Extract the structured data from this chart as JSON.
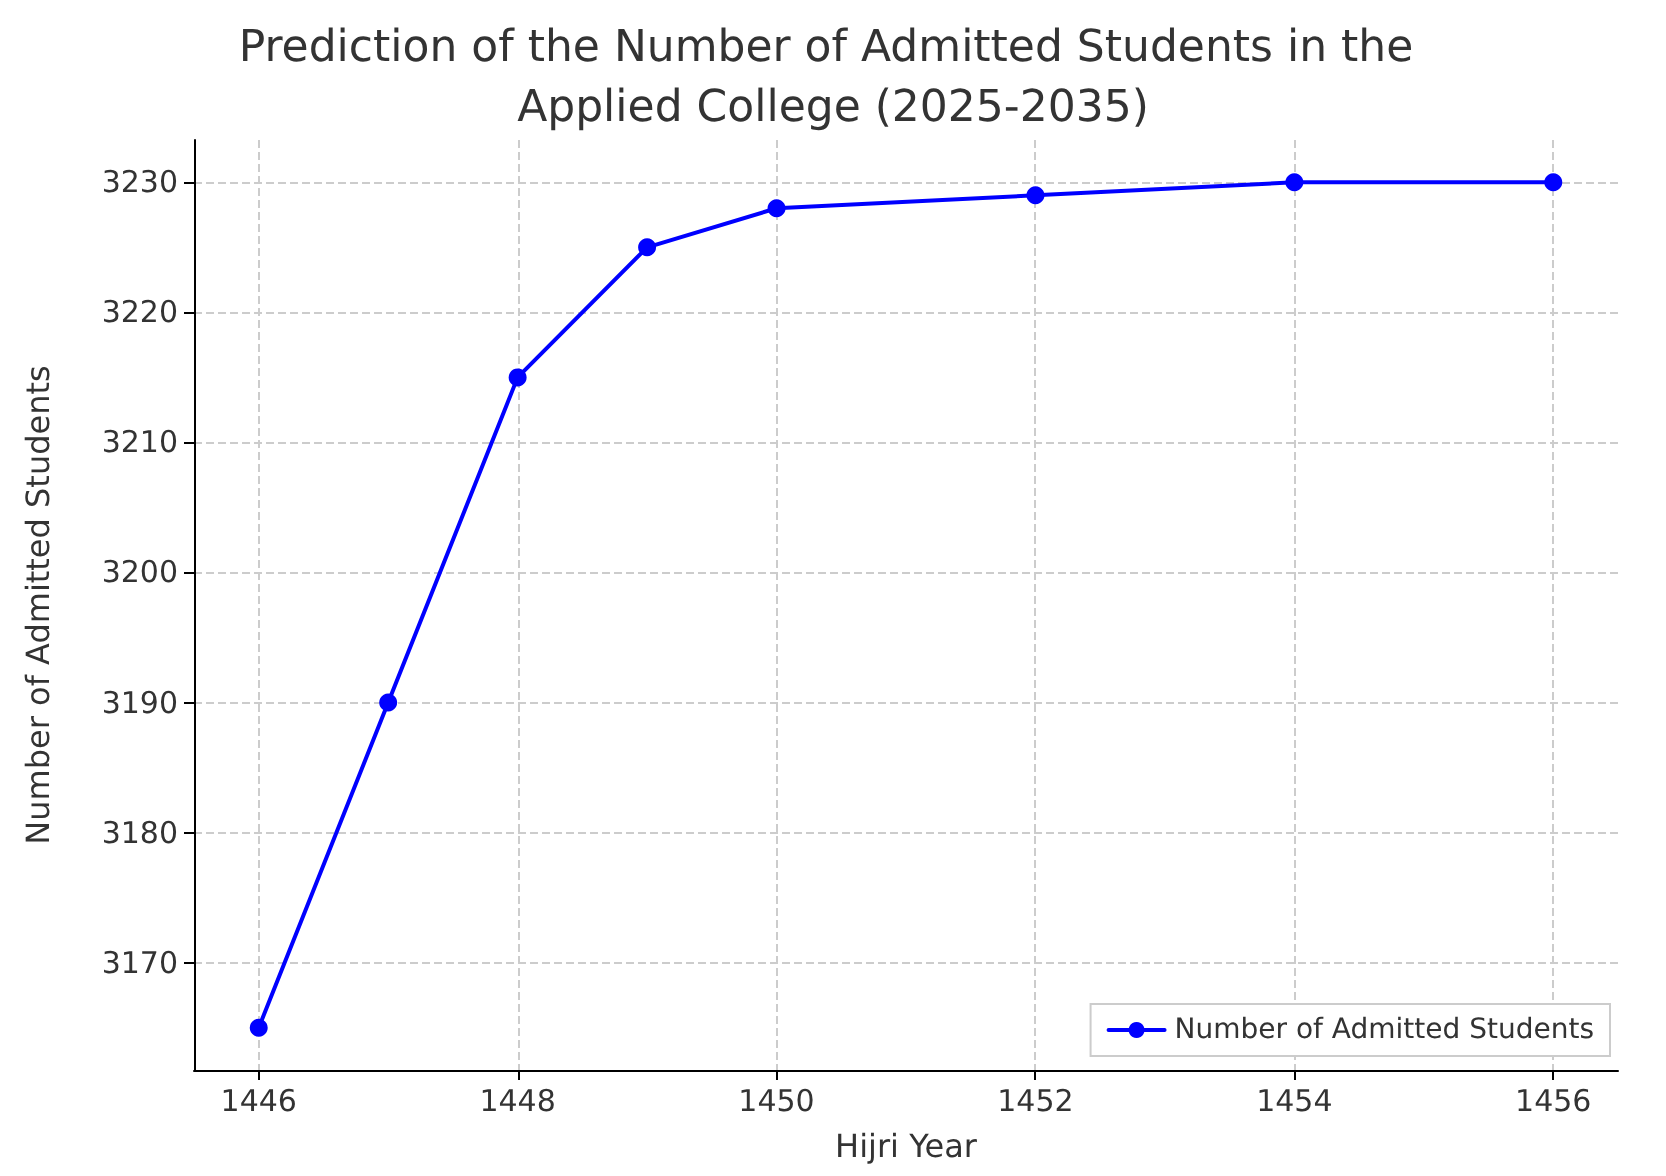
{
  "chart_data": {
    "type": "line",
    "title": "Prediction of the Number of Admitted Students in the Applied College (2025-2035)",
    "xlabel": "Hijri Year",
    "ylabel": "Number of Admitted Students",
    "x": [
      1446,
      1447,
      1448,
      1449,
      1450,
      1452,
      1454,
      1456
    ],
    "series": [
      {
        "name": "Number of Admitted Students",
        "color": "#0000ff",
        "values": [
          3165,
          3190,
          3215,
          3225,
          3228,
          3229,
          3230,
          3230
        ]
      }
    ],
    "xlim": [
      1445.5,
      1456.5
    ],
    "xticks": [
      1446,
      1448,
      1450,
      1452,
      1454,
      1456
    ],
    "ylim": [
      3161.75,
      3233.25
    ],
    "yticks": [
      3170,
      3180,
      3190,
      3200,
      3210,
      3220,
      3230
    ],
    "grid": true,
    "legend": "bottom right",
    "marker": "circle",
    "line_style": "solid"
  }
}
